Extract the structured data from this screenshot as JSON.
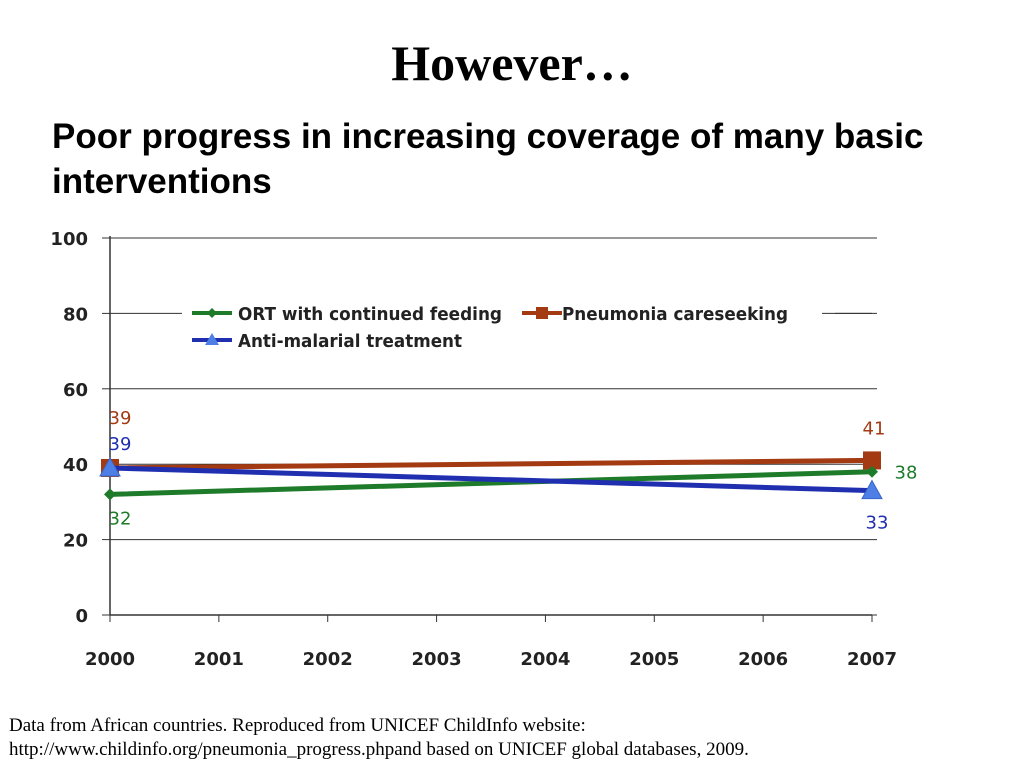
{
  "slide": {
    "title": "However…",
    "subtitle": "Poor progress in increasing coverage of many basic interventions",
    "footnote_line1": "Data from African countries. Reproduced from UNICEF ChildInfo website:",
    "footnote_line2": "http://www.childinfo.org/pneumonia_progress.phpand based on UNICEF global databases, 2009."
  },
  "chart_data": {
    "type": "line",
    "x": [
      2000,
      2001,
      2002,
      2003,
      2004,
      2005,
      2006,
      2007
    ],
    "x_tick_labels": [
      "2000",
      "2001",
      "2002",
      "2003",
      "2004",
      "2005",
      "2006",
      "2007"
    ],
    "ylim": [
      0,
      100
    ],
    "y_ticks": [
      0,
      20,
      40,
      60,
      80,
      100
    ],
    "y_tick_labels": [
      "0",
      "20",
      "40",
      "60",
      "80",
      "100"
    ],
    "grid": "horizontal",
    "legend_placement": "top",
    "series": [
      {
        "name": "ORT with continued feeding",
        "color": "#1e7b2a",
        "marker": "diamond",
        "points": [
          {
            "x": 2000,
            "y": 32,
            "label": "32"
          },
          {
            "x": 2007,
            "y": 38,
            "label": "38"
          }
        ]
      },
      {
        "name": "Pneumonia careseeking",
        "color": "#a33a12",
        "marker": "square",
        "points": [
          {
            "x": 2000,
            "y": 39,
            "label": "39"
          },
          {
            "x": 2007,
            "y": 41,
            "label": "41"
          }
        ]
      },
      {
        "name": "Anti-malarial treatment",
        "color": "#1f2fb0",
        "marker": "triangle",
        "points": [
          {
            "x": 2000,
            "y": 39,
            "label": "39"
          },
          {
            "x": 2007,
            "y": 33,
            "label": "33"
          }
        ]
      }
    ]
  }
}
